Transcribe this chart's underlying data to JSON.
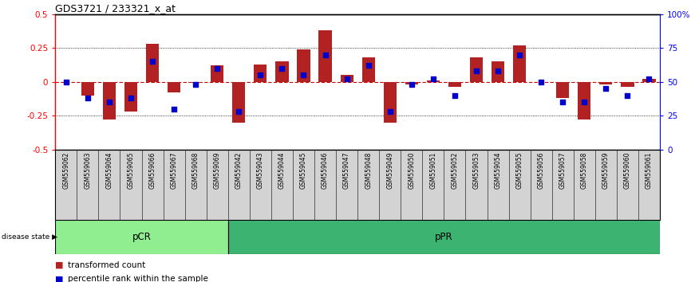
{
  "title": "GDS3721 / 233321_x_at",
  "samples": [
    "GSM559062",
    "GSM559063",
    "GSM559064",
    "GSM559065",
    "GSM559066",
    "GSM559067",
    "GSM559068",
    "GSM559069",
    "GSM559042",
    "GSM559043",
    "GSM559044",
    "GSM559045",
    "GSM559046",
    "GSM559047",
    "GSM559048",
    "GSM559049",
    "GSM559050",
    "GSM559051",
    "GSM559052",
    "GSM559053",
    "GSM559054",
    "GSM559055",
    "GSM559056",
    "GSM559057",
    "GSM559058",
    "GSM559059",
    "GSM559060",
    "GSM559061"
  ],
  "red_bars": [
    0.0,
    -0.1,
    -0.28,
    -0.22,
    0.28,
    -0.08,
    -0.01,
    0.12,
    -0.3,
    0.13,
    0.15,
    0.24,
    0.38,
    0.05,
    0.18,
    -0.3,
    -0.02,
    0.01,
    -0.04,
    0.18,
    0.15,
    0.27,
    0.0,
    -0.12,
    -0.28,
    -0.02,
    -0.04,
    0.02
  ],
  "blue_dots": [
    50,
    38,
    35,
    38,
    65,
    30,
    48,
    60,
    28,
    55,
    60,
    55,
    70,
    52,
    62,
    28,
    48,
    52,
    40,
    58,
    58,
    70,
    50,
    35,
    35,
    45,
    40,
    52
  ],
  "pCR_count": 8,
  "pPR_count": 20,
  "ylim": [
    -0.5,
    0.5
  ],
  "yticks_left": [
    -0.5,
    -0.25,
    0,
    0.25,
    0.5
  ],
  "yticks_right": [
    0,
    25,
    50,
    75,
    100
  ],
  "hlines": [
    0.25,
    0,
    -0.25
  ],
  "bar_color": "#b22222",
  "dot_color": "#0000cd",
  "zero_line_color": "#cc0000",
  "pCR_color": "#90ee90",
  "pPR_color": "#3cb371",
  "background_color": "#ffffff",
  "legend_red": "transformed count",
  "legend_blue": "percentile rank within the sample"
}
